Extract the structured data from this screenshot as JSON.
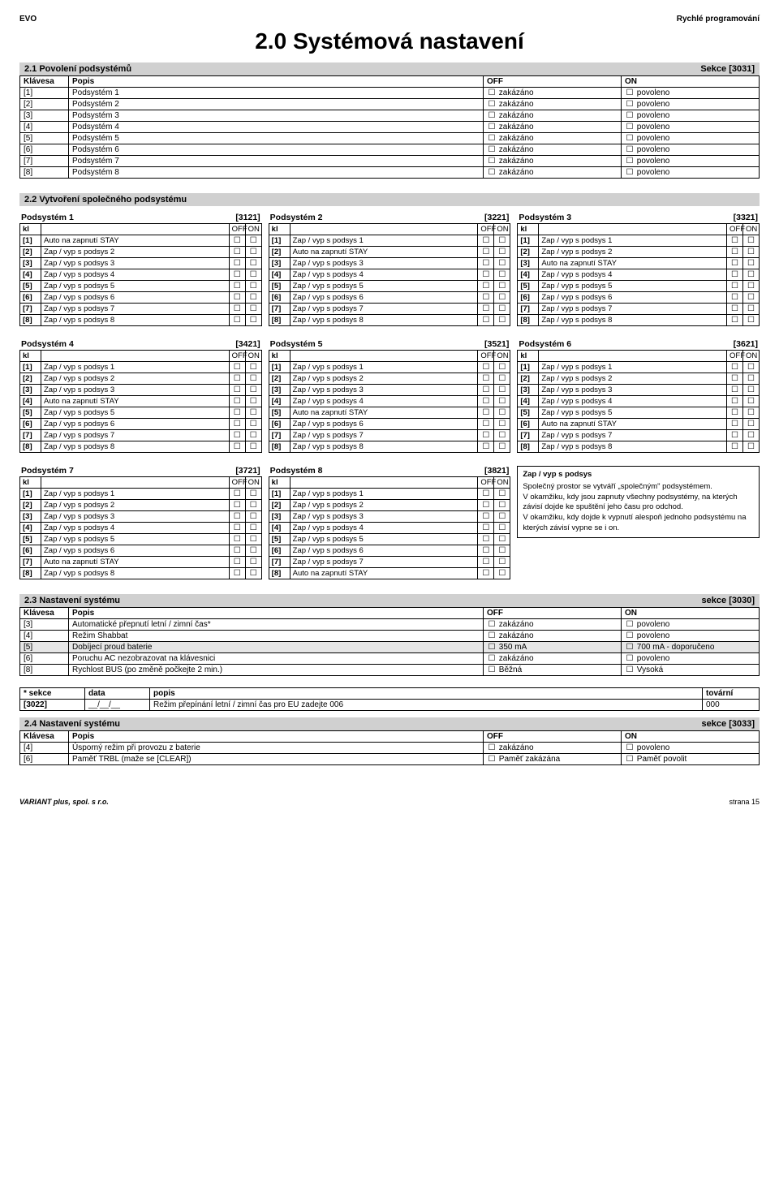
{
  "header": {
    "left": "EVO",
    "right": "Rychlé programování"
  },
  "main_title": "2.0 Systémová nastavení",
  "sec21": {
    "title": "2.1 Povolení podsystémů",
    "right": "Sekce [3031]",
    "cols": [
      "Klávesa",
      "Popis",
      "OFF",
      "ON"
    ],
    "rows": [
      {
        "k": "[1]",
        "p": "Podsystém 1",
        "off": "zakázáno",
        "on": "povoleno"
      },
      {
        "k": "[2]",
        "p": "Podsystém 2",
        "off": "zakázáno",
        "on": "povoleno"
      },
      {
        "k": "[3]",
        "p": "Podsystém 3",
        "off": "zakázáno",
        "on": "povoleno"
      },
      {
        "k": "[4]",
        "p": "Podsystém 4",
        "off": "zakázáno",
        "on": "povoleno"
      },
      {
        "k": "[5]",
        "p": "Podsystém 5",
        "off": "zakázáno",
        "on": "povoleno"
      },
      {
        "k": "[6]",
        "p": "Podsystém 6",
        "off": "zakázáno",
        "on": "povoleno"
      },
      {
        "k": "[7]",
        "p": "Podsystém 7",
        "off": "zakázáno",
        "on": "povoleno"
      },
      {
        "k": "[8]",
        "p": "Podsystém 8",
        "off": "zakázáno",
        "on": "povoleno"
      }
    ]
  },
  "sec22": {
    "title": "2.2 Vytvoření společného podsystému",
    "kl_label": "kl",
    "off_label": "OFF",
    "on_label": "ON",
    "blocks": [
      [
        {
          "name": "Podsystém 1",
          "code": "[3121]",
          "rows": [
            [
              "[1]",
              "Auto na zapnutí STAY"
            ],
            [
              "[2]",
              "Zap / vyp s podsys 2"
            ],
            [
              "[3]",
              "Zap / vyp s podsys 3"
            ],
            [
              "[4]",
              "Zap / vyp s podsys 4"
            ],
            [
              "[5]",
              "Zap / vyp s podsys 5"
            ],
            [
              "[6]",
              "Zap / vyp s podsys 6"
            ],
            [
              "[7]",
              "Zap / vyp s podsys 7"
            ],
            [
              "[8]",
              "Zap / vyp s podsys 8"
            ]
          ]
        },
        {
          "name": "Podsystém 2",
          "code": "[3221]",
          "rows": [
            [
              "[1]",
              "Zap / vyp s podsys 1"
            ],
            [
              "[2]",
              "Auto na zapnutí STAY"
            ],
            [
              "[3]",
              "Zap / vyp s podsys 3"
            ],
            [
              "[4]",
              "Zap / vyp s podsys 4"
            ],
            [
              "[5]",
              "Zap / vyp s podsys 5"
            ],
            [
              "[6]",
              "Zap / vyp s podsys 6"
            ],
            [
              "[7]",
              "Zap / vyp s podsys 7"
            ],
            [
              "[8]",
              "Zap / vyp s podsys 8"
            ]
          ]
        },
        {
          "name": "Podsystém 3",
          "code": "[3321]",
          "rows": [
            [
              "[1]",
              "Zap / vyp s podsys 1"
            ],
            [
              "[2]",
              "Zap / vyp s podsys 2"
            ],
            [
              "[3]",
              "Auto na zapnutí STAY"
            ],
            [
              "[4]",
              "Zap / vyp s podsys 4"
            ],
            [
              "[5]",
              "Zap / vyp s podsys 5"
            ],
            [
              "[6]",
              "Zap / vyp s podsys 6"
            ],
            [
              "[7]",
              "Zap / vyp s podsys 7"
            ],
            [
              "[8]",
              "Zap / vyp s podsys 8"
            ]
          ]
        }
      ],
      [
        {
          "name": "Podsystém 4",
          "code": "[3421]",
          "rows": [
            [
              "[1]",
              "Zap / vyp s podsys 1"
            ],
            [
              "[2]",
              "Zap / vyp s podsys 2"
            ],
            [
              "[3]",
              "Zap / vyp s podsys 3"
            ],
            [
              "[4]",
              "Auto na zapnutí STAY"
            ],
            [
              "[5]",
              "Zap / vyp s podsys 5"
            ],
            [
              "[6]",
              "Zap / vyp s podsys 6"
            ],
            [
              "[7]",
              "Zap / vyp s podsys 7"
            ],
            [
              "[8]",
              "Zap / vyp s podsys 8"
            ]
          ]
        },
        {
          "name": "Podsystém 5",
          "code": "[3521]",
          "rows": [
            [
              "[1]",
              "Zap / vyp s podsys 1"
            ],
            [
              "[2]",
              "Zap / vyp s podsys 2"
            ],
            [
              "[3]",
              "Zap / vyp s podsys 3"
            ],
            [
              "[4]",
              "Zap / vyp s podsys 4"
            ],
            [
              "[5]",
              "Auto na zapnutí STAY"
            ],
            [
              "[6]",
              "Zap / vyp s podsys 6"
            ],
            [
              "[7]",
              "Zap / vyp s podsys 7"
            ],
            [
              "[8]",
              "Zap / vyp s podsys 8"
            ]
          ]
        },
        {
          "name": "Podsystém 6",
          "code": "[3621]",
          "rows": [
            [
              "[1]",
              "Zap / vyp s podsys 1"
            ],
            [
              "[2]",
              "Zap / vyp s podsys 2"
            ],
            [
              "[3]",
              "Zap / vyp s podsys 3"
            ],
            [
              "[4]",
              "Zap / vyp s podsys 4"
            ],
            [
              "[5]",
              "Zap / vyp s podsys 5"
            ],
            [
              "[6]",
              "Auto na zapnutí STAY"
            ],
            [
              "[7]",
              "Zap / vyp s podsys 7"
            ],
            [
              "[8]",
              "Zap / vyp s podsys 8"
            ]
          ]
        }
      ],
      [
        {
          "name": "Podsystém 7",
          "code": "[3721]",
          "rows": [
            [
              "[1]",
              "Zap / vyp s podsys 1"
            ],
            [
              "[2]",
              "Zap / vyp s podsys 2"
            ],
            [
              "[3]",
              "Zap / vyp s podsys 3"
            ],
            [
              "[4]",
              "Zap / vyp s podsys 4"
            ],
            [
              "[5]",
              "Zap / vyp s podsys 5"
            ],
            [
              "[6]",
              "Zap / vyp s podsys 6"
            ],
            [
              "[7]",
              "Auto na zapnutí STAY"
            ],
            [
              "[8]",
              "Zap / vyp s podsys 8"
            ]
          ]
        },
        {
          "name": "Podsystém 8",
          "code": "[3821]",
          "rows": [
            [
              "[1]",
              "Zap / vyp s podsys 1"
            ],
            [
              "[2]",
              "Zap / vyp s podsys 2"
            ],
            [
              "[3]",
              "Zap / vyp s podsys 3"
            ],
            [
              "[4]",
              "Zap / vyp s podsys 4"
            ],
            [
              "[5]",
              "Zap / vyp s podsys 5"
            ],
            [
              "[6]",
              "Zap / vyp s podsys 6"
            ],
            [
              "[7]",
              "Zap / vyp s podsys 7"
            ],
            [
              "[8]",
              "Auto na zapnutí STAY"
            ]
          ]
        }
      ]
    ],
    "note": {
      "title": "Zap / vyp s podsys",
      "body1": "Společný prostor se vytváří „společným\" podsystémem.",
      "body2": "V okamžiku, kdy jsou zapnuty všechny podsystémy, na kterých závisí dojde ke spuštění jeho času pro odchod.",
      "body3": "V okamžiku, kdy dojde k vypnutí alespoň jednoho podsystému na kterých závisí vypne se i on."
    }
  },
  "sec23": {
    "title": "2.3 Nastavení systému",
    "right": "sekce [3030]",
    "cols": [
      "Klávesa",
      "Popis",
      "OFF",
      "ON"
    ],
    "rows": [
      {
        "k": "[3]",
        "p": "Automatické přepnutí letní / zimní čas*",
        "off": "zakázáno",
        "on": "povoleno",
        "shade": false
      },
      {
        "k": "[4]",
        "p": "Režim Shabbat",
        "off": "zakázáno",
        "on": "povoleno",
        "shade": false
      },
      {
        "k": "[5]",
        "p": "Dobíjecí proud baterie",
        "off": "350 mA",
        "on": "700 mA - doporučeno",
        "shade": true
      },
      {
        "k": "[6]",
        "p": "Poruchu AC nezobrazovat na klávesnici",
        "off": "zakázáno",
        "on": "povoleno",
        "shade": false
      },
      {
        "k": "[8]",
        "p": "Rychlost BUS  (po změně počkejte 2 min.)",
        "off": "Běžná",
        "on": "Vysoká",
        "shade": false
      }
    ]
  },
  "sec23b": {
    "cols": [
      "*    sekce",
      "data",
      "popis",
      "tovární"
    ],
    "row": {
      "sekce": "[3022]",
      "data": "__/__/__",
      "popis": "Režim přepínání letní / zimní čas  pro EU zadejte 006",
      "tovarni": "000"
    }
  },
  "sec24": {
    "title": "2.4 Nastavení systému",
    "right": "sekce [3033]",
    "cols": [
      "Klávesa",
      "Popis",
      "OFF",
      "ON"
    ],
    "rows": [
      {
        "k": "[4]",
        "p": "Úsporný režim při provozu z baterie",
        "off": "zakázáno",
        "on": "povoleno"
      },
      {
        "k": "[6]",
        "p": "Paměť  TRBL  (maže se [CLEAR])",
        "off": "Paměť zakázána",
        "on": "Paměť povolit"
      }
    ]
  },
  "footer": {
    "left": "VARIANT plus, spol. s r.o.",
    "right": "strana 15"
  },
  "checkbox_glyph": "☐"
}
